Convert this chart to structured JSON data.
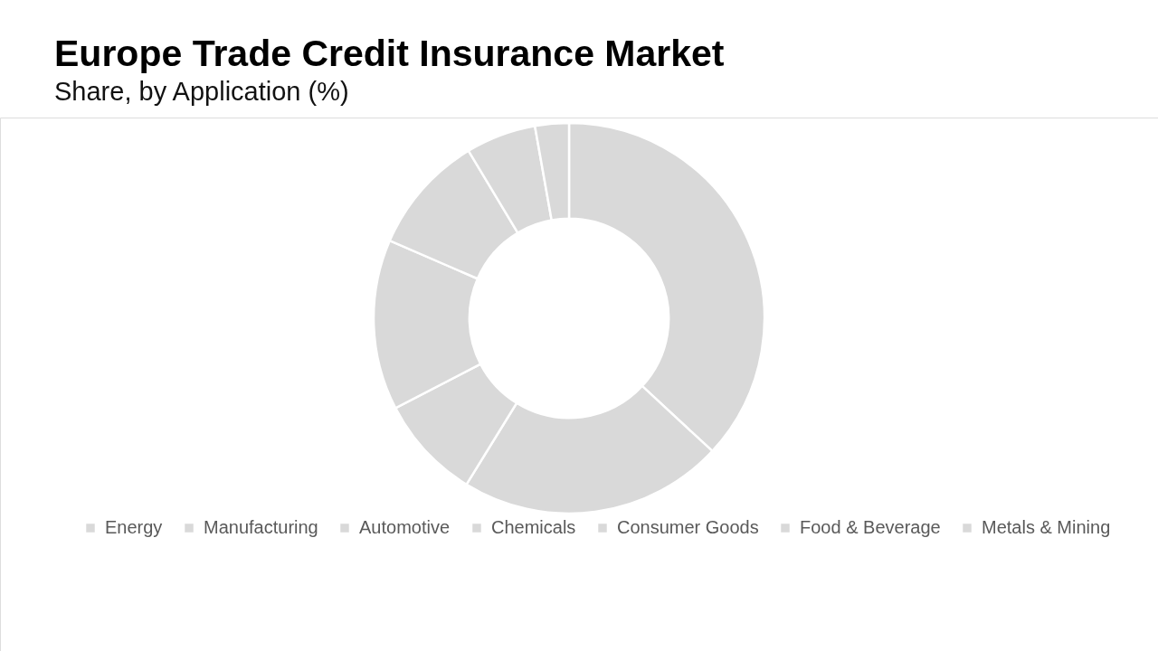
{
  "chart_data": {
    "type": "donut",
    "title": "Europe Trade Credit Insurance Market",
    "subtitle": "Share, by Application (%)",
    "categories": [
      "Energy",
      "Manufacturing",
      "Automotive",
      "Chemicals",
      "Consumer Goods",
      "Food & Beverage",
      "Metals & Mining"
    ],
    "values": [
      36.9,
      21.9,
      8.6,
      14.1,
      9.9,
      5.8,
      2.8
    ],
    "colors": [
      "#d9d9d9",
      "#d9d9d9",
      "#d9d9d9",
      "#d9d9d9",
      "#d9d9d9",
      "#d9d9d9",
      "#d9d9d9"
    ],
    "legend": "bottom"
  }
}
